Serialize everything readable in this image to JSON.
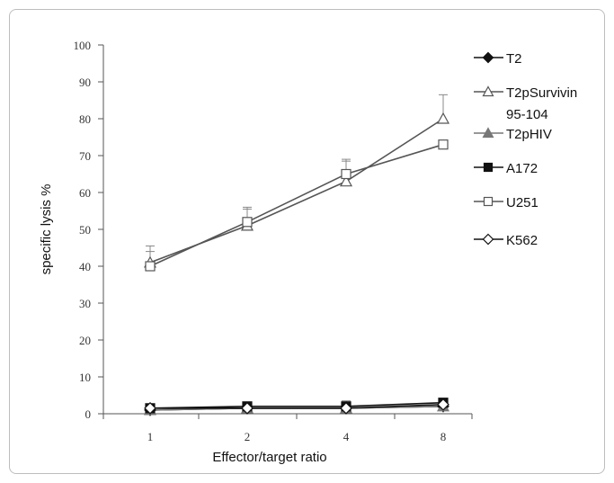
{
  "chart_data": {
    "type": "line",
    "x": [
      1,
      2,
      4,
      8
    ],
    "xlabel": "Effector/target ratio",
    "ylabel": "specific lysis %",
    "ylim": [
      0,
      100
    ],
    "yticks": [
      0,
      10,
      20,
      30,
      40,
      50,
      60,
      70,
      80,
      90,
      100
    ],
    "xtick_labels": [
      "1",
      "2",
      "4",
      "8"
    ],
    "legend_position": "right",
    "grid": false,
    "series": [
      {
        "name": "T2",
        "values": [
          1,
          1.5,
          1.5,
          2
        ],
        "errors": [
          0,
          0,
          0,
          0
        ],
        "marker": "diamond-filled",
        "color": "#111111"
      },
      {
        "name": "T2pSurvivin 95-104",
        "values": [
          41,
          51,
          63,
          80
        ],
        "errors": [
          4.5,
          4.5,
          5.5,
          6.5
        ],
        "marker": "triangle-open",
        "color": "#555555"
      },
      {
        "name": "T2pHIV",
        "values": [
          1,
          1.5,
          1.5,
          2
        ],
        "errors": [
          0,
          0,
          0,
          0
        ],
        "marker": "triangle-filled",
        "color": "#777777"
      },
      {
        "name": "A172",
        "values": [
          1.5,
          2,
          2,
          3
        ],
        "errors": [
          0.5,
          0.5,
          1.5,
          0.5
        ],
        "marker": "square-filled",
        "color": "#111111"
      },
      {
        "name": "U251",
        "values": [
          40,
          52,
          65,
          73
        ],
        "errors": [
          4,
          4,
          4,
          0
        ],
        "marker": "square-open",
        "color": "#555555"
      },
      {
        "name": "K562",
        "values": [
          1.5,
          1.5,
          1.5,
          2.5
        ],
        "errors": [
          1,
          0.5,
          0.5,
          0.5
        ],
        "marker": "diamond-open",
        "color": "#111111"
      }
    ]
  }
}
